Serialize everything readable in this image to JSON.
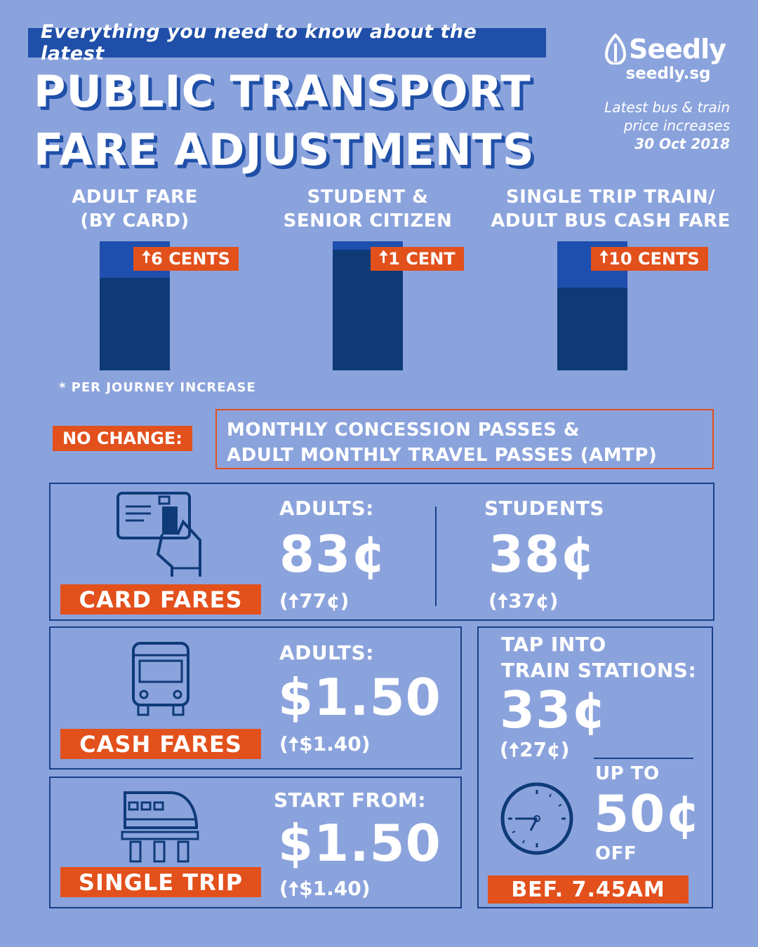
{
  "header": {
    "banner": "Everything you need to know about the latest",
    "title_line1": "PUBLIC TRANSPORT",
    "title_line2": "FARE ADJUSTMENTS",
    "logo_text": "Seedly",
    "logo_url": "seedly.sg",
    "note_line1": "Latest bus & train",
    "note_line2": "price increases",
    "note_date": "30 Oct 2018"
  },
  "increases": {
    "categories": [
      {
        "line1": "ADULT FARE",
        "line2": "(BY CARD)",
        "increase": "6 CENTS"
      },
      {
        "line1": "STUDENT &",
        "line2": "SENIOR CITIZEN",
        "increase": "1 CENT"
      },
      {
        "line1": "SINGLE TRIP TRAIN/",
        "line2": "ADULT BUS CASH FARE",
        "increase": "10 CENTS"
      }
    ],
    "footnote": "* PER JOURNEY INCREASE"
  },
  "no_change": {
    "label": "NO CHANGE:",
    "line1": "MONTHLY CONCESSION PASSES &",
    "line2": "ADULT MONTHLY TRAVEL PASSES (AMTP)"
  },
  "card_fares": {
    "button": "CARD FARES",
    "adults_label": "ADULTS:",
    "adults_value": "83¢",
    "adults_delta": "77¢",
    "students_label": "STUDENTS",
    "students_value": "38¢",
    "students_delta": "37¢"
  },
  "cash_fares": {
    "button": "CASH FARES",
    "adults_label": "ADULTS:",
    "adults_value": "$1.50",
    "adults_delta": "$1.40"
  },
  "single_trip": {
    "button": "SINGLE TRIP",
    "label": "START FROM:",
    "value": "$1.50",
    "delta": "$1.40"
  },
  "train_stations": {
    "label_line1": "TAP INTO",
    "label_line2": "TRAIN STATIONS:",
    "value": "33¢",
    "delta": "27¢",
    "upto": "UP TO",
    "discount": "50¢",
    "off": "OFF",
    "button": "BEF. 7.45AM"
  },
  "colors": {
    "background": "#8ba3dc",
    "accent": "#e2501c",
    "navy": "#0e3a78",
    "blue": "#1f4fa8"
  }
}
